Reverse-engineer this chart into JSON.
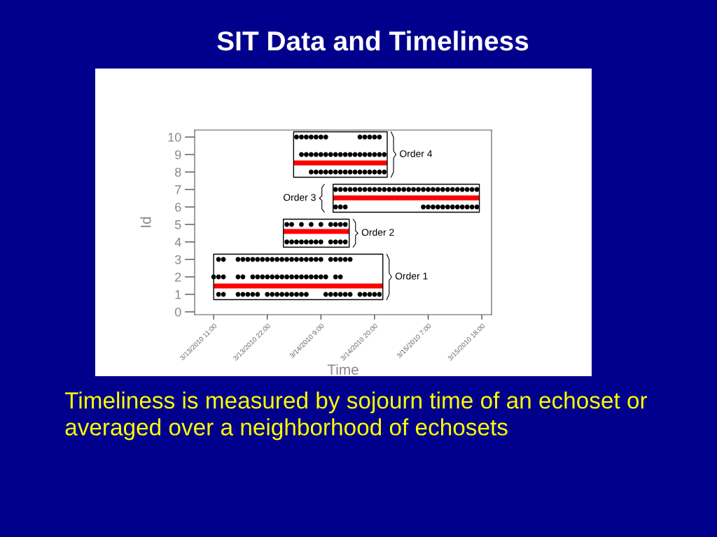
{
  "chart_data": {
    "type": "scatter",
    "title": "SIT Data and Timeliness",
    "xlabel": "Time",
    "ylabel": "Id",
    "xlim": [
      "2010-03-13T07:06",
      "2010-03-15T20:00"
    ],
    "xticks": [
      {
        "value": "2010-03-13T11:00",
        "label": "3/13/2010 11:00"
      },
      {
        "value": "2010-03-13T22:00",
        "label": "3/13/2010 22:00"
      },
      {
        "value": "2010-03-14T09:00",
        "label": "3/14/2010 9:00"
      },
      {
        "value": "2010-03-14T20:00",
        "label": "3/14/2010 20:00"
      },
      {
        "value": "2010-03-15T07:00",
        "label": "3/15/2010 7:00"
      },
      {
        "value": "2010-03-15T18:00",
        "label": "3/15/2010 18:00"
      }
    ],
    "ylim": [
      -0.16,
      10.4
    ],
    "yticks": [
      0,
      1,
      2,
      3,
      4,
      5,
      6,
      7,
      8,
      9,
      10
    ],
    "grid": false,
    "series": [
      {
        "marker": "circle",
        "color": "#000000",
        "x": [
          "2010-03-13T12:00",
          "2010-03-13T13:00",
          "2010-03-13T16:00",
          "2010-03-13T17:00",
          "2010-03-13T18:00",
          "2010-03-13T19:00",
          "2010-03-13T20:00",
          "2010-03-13T22:00",
          "2010-03-13T23:00",
          "2010-03-14T00:00",
          "2010-03-14T01:00",
          "2010-03-14T02:00",
          "2010-03-14T03:00",
          "2010-03-14T04:00",
          "2010-03-14T05:00",
          "2010-03-14T06:00",
          "2010-03-14T10:00",
          "2010-03-14T11:00",
          "2010-03-14T12:00",
          "2010-03-14T13:00",
          "2010-03-14T14:00",
          "2010-03-14T15:00",
          "2010-03-14T17:00",
          "2010-03-14T18:00",
          "2010-03-14T19:00",
          "2010-03-14T20:00",
          "2010-03-14T21:00"
        ],
        "values": [
          1,
          1,
          1,
          1,
          1,
          1,
          1,
          1,
          1,
          1,
          1,
          1,
          1,
          1,
          1,
          1,
          1,
          1,
          1,
          1,
          1,
          1,
          1,
          1,
          1,
          1,
          1
        ]
      },
      {
        "marker": "circle",
        "color": "#000000",
        "x": [
          "2010-03-13T11:00",
          "2010-03-13T12:00",
          "2010-03-13T13:00",
          "2010-03-13T16:00",
          "2010-03-13T17:00",
          "2010-03-13T19:00",
          "2010-03-13T20:00",
          "2010-03-13T21:00",
          "2010-03-13T22:00",
          "2010-03-13T23:00",
          "2010-03-14T00:00",
          "2010-03-14T01:00",
          "2010-03-14T02:00",
          "2010-03-14T03:00",
          "2010-03-14T04:00",
          "2010-03-14T05:00",
          "2010-03-14T06:00",
          "2010-03-14T07:00",
          "2010-03-14T08:00",
          "2010-03-14T09:00",
          "2010-03-14T10:00",
          "2010-03-14T12:00",
          "2010-03-14T13:00"
        ],
        "values": [
          2,
          2,
          2,
          2,
          2,
          2,
          2,
          2,
          2,
          2,
          2,
          2,
          2,
          2,
          2,
          2,
          2,
          2,
          2,
          2,
          2,
          2,
          2
        ]
      },
      {
        "marker": "circle",
        "color": "#000000",
        "x": [
          "2010-03-13T12:00",
          "2010-03-13T13:00",
          "2010-03-13T16:00",
          "2010-03-13T17:00",
          "2010-03-13T18:00",
          "2010-03-13T19:00",
          "2010-03-13T20:00",
          "2010-03-13T21:00",
          "2010-03-13T22:00",
          "2010-03-13T23:00",
          "2010-03-14T00:00",
          "2010-03-14T01:00",
          "2010-03-14T02:00",
          "2010-03-14T03:00",
          "2010-03-14T04:00",
          "2010-03-14T05:00",
          "2010-03-14T06:00",
          "2010-03-14T07:00",
          "2010-03-14T08:00",
          "2010-03-14T09:00",
          "2010-03-14T11:00",
          "2010-03-14T12:00",
          "2010-03-14T13:00",
          "2010-03-14T14:00",
          "2010-03-14T15:00"
        ],
        "values": [
          3,
          3,
          3,
          3,
          3,
          3,
          3,
          3,
          3,
          3,
          3,
          3,
          3,
          3,
          3,
          3,
          3,
          3,
          3,
          3,
          3,
          3,
          3,
          3,
          3
        ]
      },
      {
        "marker": "circle",
        "color": "#000000",
        "x": [
          "2010-03-14T02:00",
          "2010-03-14T03:00",
          "2010-03-14T04:00",
          "2010-03-14T05:00",
          "2010-03-14T06:00",
          "2010-03-14T07:00",
          "2010-03-14T08:00",
          "2010-03-14T09:00",
          "2010-03-14T11:00",
          "2010-03-14T12:00",
          "2010-03-14T13:00",
          "2010-03-14T14:00"
        ],
        "values": [
          4,
          4,
          4,
          4,
          4,
          4,
          4,
          4,
          4,
          4,
          4,
          4
        ]
      },
      {
        "marker": "circle",
        "color": "#000000",
        "x": [
          "2010-03-14T02:00",
          "2010-03-14T03:00",
          "2010-03-14T05:00",
          "2010-03-14T07:00",
          "2010-03-14T09:00",
          "2010-03-14T11:00",
          "2010-03-14T12:00",
          "2010-03-14T13:00",
          "2010-03-14T14:00"
        ],
        "values": [
          5,
          5,
          5,
          5,
          5,
          5,
          5,
          5,
          5
        ]
      },
      {
        "marker": "circle",
        "color": "#000000",
        "x": [
          "2010-03-14T12:00",
          "2010-03-14T13:00",
          "2010-03-14T14:00",
          "2010-03-15T06:00",
          "2010-03-15T07:00",
          "2010-03-15T08:00",
          "2010-03-15T09:00",
          "2010-03-15T10:00",
          "2010-03-15T11:00",
          "2010-03-15T12:00",
          "2010-03-15T13:00",
          "2010-03-15T14:00",
          "2010-03-15T15:00",
          "2010-03-15T16:00",
          "2010-03-15T17:00"
        ],
        "values": [
          6,
          6,
          6,
          6,
          6,
          6,
          6,
          6,
          6,
          6,
          6,
          6,
          6,
          6,
          6
        ]
      },
      {
        "marker": "circle",
        "color": "#000000",
        "x": [
          "2010-03-14T12:00",
          "2010-03-14T13:00",
          "2010-03-14T14:00",
          "2010-03-14T15:00",
          "2010-03-14T16:00",
          "2010-03-14T17:00",
          "2010-03-14T18:00",
          "2010-03-14T19:00",
          "2010-03-14T20:00",
          "2010-03-14T21:00",
          "2010-03-14T22:00",
          "2010-03-14T23:00",
          "2010-03-15T00:00",
          "2010-03-15T01:00",
          "2010-03-15T02:00",
          "2010-03-15T03:00",
          "2010-03-15T04:00",
          "2010-03-15T05:00",
          "2010-03-15T06:00",
          "2010-03-15T07:00",
          "2010-03-15T08:00",
          "2010-03-15T09:00",
          "2010-03-15T10:00",
          "2010-03-15T11:00",
          "2010-03-15T12:00",
          "2010-03-15T13:00",
          "2010-03-15T14:00",
          "2010-03-15T15:00",
          "2010-03-15T16:00",
          "2010-03-15T17:00"
        ],
        "values": [
          7,
          7,
          7,
          7,
          7,
          7,
          7,
          7,
          7,
          7,
          7,
          7,
          7,
          7,
          7,
          7,
          7,
          7,
          7,
          7,
          7,
          7,
          7,
          7,
          7,
          7,
          7,
          7,
          7,
          7
        ]
      },
      {
        "marker": "circle",
        "color": "#000000",
        "x": [
          "2010-03-14T07:00",
          "2010-03-14T08:00",
          "2010-03-14T09:00",
          "2010-03-14T10:00",
          "2010-03-14T11:00",
          "2010-03-14T12:00",
          "2010-03-14T13:00",
          "2010-03-14T14:00",
          "2010-03-14T15:00",
          "2010-03-14T16:00",
          "2010-03-14T17:00",
          "2010-03-14T18:00",
          "2010-03-14T19:00",
          "2010-03-14T20:00",
          "2010-03-14T21:00",
          "2010-03-14T22:00"
        ],
        "values": [
          8,
          8,
          8,
          8,
          8,
          8,
          8,
          8,
          8,
          8,
          8,
          8,
          8,
          8,
          8,
          8
        ]
      },
      {
        "marker": "circle",
        "color": "#000000",
        "x": [
          "2010-03-14T05:00",
          "2010-03-14T06:00",
          "2010-03-14T07:00",
          "2010-03-14T08:00",
          "2010-03-14T09:00",
          "2010-03-14T10:00",
          "2010-03-14T11:00",
          "2010-03-14T12:00",
          "2010-03-14T13:00",
          "2010-03-14T14:00",
          "2010-03-14T15:00",
          "2010-03-14T16:00",
          "2010-03-14T17:00",
          "2010-03-14T18:00",
          "2010-03-14T19:00",
          "2010-03-14T20:00",
          "2010-03-14T21:00",
          "2010-03-14T22:00"
        ],
        "values": [
          9,
          9,
          9,
          9,
          9,
          9,
          9,
          9,
          9,
          9,
          9,
          9,
          9,
          9,
          9,
          9,
          9,
          9
        ]
      },
      {
        "marker": "circle",
        "color": "#000000",
        "x": [
          "2010-03-14T04:00",
          "2010-03-14T05:00",
          "2010-03-14T06:00",
          "2010-03-14T07:00",
          "2010-03-14T08:00",
          "2010-03-14T09:00",
          "2010-03-14T10:00",
          "2010-03-14T17:00",
          "2010-03-14T18:00",
          "2010-03-14T19:00",
          "2010-03-14T20:00",
          "2010-03-14T21:00"
        ],
        "values": [
          10,
          10,
          10,
          10,
          10,
          10,
          10,
          10,
          10,
          10,
          10,
          10
        ]
      },
      {
        "type": "line",
        "marker": "none",
        "color": "#ff0000",
        "x": [
          "2010-03-13T11:00",
          "2010-03-14T21:42"
        ],
        "values": [
          1.48,
          1.48
        ]
      },
      {
        "type": "line",
        "marker": "none",
        "color": "#ff0000",
        "x": [
          "2010-03-14T01:18",
          "2010-03-14T14:48"
        ],
        "values": [
          4.6,
          4.6
        ]
      },
      {
        "type": "line",
        "marker": "none",
        "color": "#ff0000",
        "x": [
          "2010-03-14T11:30",
          "2010-03-15T17:30"
        ],
        "values": [
          6.52,
          6.52
        ]
      },
      {
        "type": "line",
        "marker": "none",
        "color": "#ff0000",
        "x": [
          "2010-03-14T03:24",
          "2010-03-14T22:36"
        ],
        "values": [
          8.52,
          8.52
        ]
      }
    ],
    "annotations": [
      "Order 4",
      "Order 3",
      "Order 2",
      "Order 1",
      "Timeliness is measured by sojourn time of an echoset or averaged over a neighborhood of echosets"
    ]
  }
}
